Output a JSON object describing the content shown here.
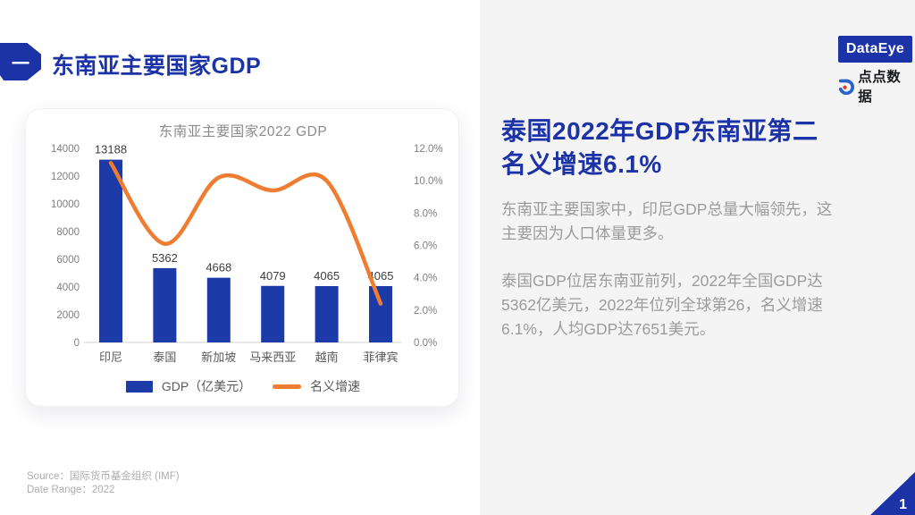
{
  "page": {
    "badge": "一",
    "title": "东南亚主要国家GDP",
    "page_number": "1"
  },
  "logo": {
    "brand": "DataEye",
    "product": "点点数据"
  },
  "right_panel": {
    "heading": "泰国2022年GDP东南亚第二\n名义增速6.1%",
    "paragraphs": [
      "东南亚主要国家中，印尼GDP总量大幅领先，这\n主要因为人口体量更多。",
      "泰国GDP位居东南亚前列，2022年全国GDP达\n5362亿美元，2022年位列全球第26，名义增速\n6.1%，人均GDP达7651美元。"
    ]
  },
  "footer": {
    "source": "Source：国际货币基金组织 (IMF)",
    "date_range": "Date Range：2022"
  },
  "colors": {
    "brand_blue": "#1b33a7",
    "bar_blue": "#1c3aa8",
    "line_orange": "#ee7d31",
    "panel_bg": "#f4f4f5"
  },
  "chart_data": {
    "type": "bar",
    "title": "东南亚主要国家2022 GDP",
    "categories": [
      "印尼",
      "泰国",
      "新加坡",
      "马来西亚",
      "越南",
      "菲律宾"
    ],
    "series": [
      {
        "name": "GDP（亿美元）",
        "type": "bar",
        "axis": "left",
        "color": "#1c3aa8",
        "values": [
          13188,
          5362,
          4668,
          4079,
          4065,
          4065
        ],
        "labels": [
          "13188",
          "5362",
          "4668",
          "4079",
          "4065",
          "4065"
        ]
      },
      {
        "name": "名义增速",
        "type": "line",
        "axis": "right",
        "color": "#ee7d31",
        "values": [
          11.1,
          6.1,
          10.2,
          9.4,
          10.0,
          2.4
        ]
      }
    ],
    "left_axis": {
      "min": 0,
      "max": 14000,
      "step": 2000,
      "ticks": [
        "14000",
        "12000",
        "10000",
        "8000",
        "6000",
        "4000",
        "2000",
        "0"
      ]
    },
    "right_axis": {
      "min": 0,
      "max": 12,
      "step": 2,
      "ticks": [
        "12.0%",
        "10.0%",
        "8.0%",
        "6.0%",
        "4.0%",
        "2.0%",
        "0.0%"
      ]
    },
    "legend_position": "bottom",
    "grid": false
  }
}
